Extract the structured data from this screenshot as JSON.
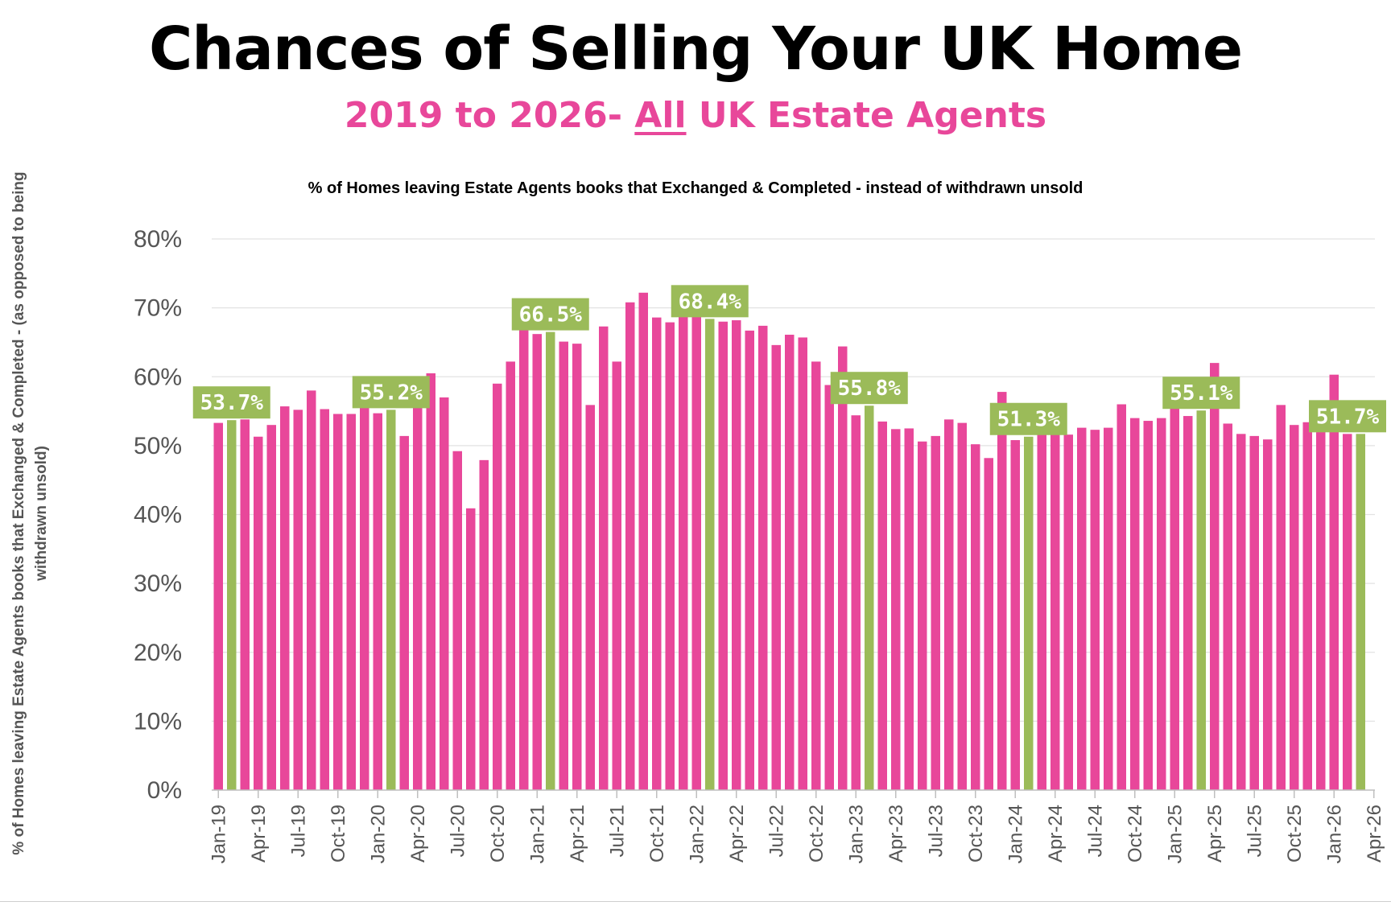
{
  "title": "Chances of Selling Your UK Home",
  "subtitle_pre": "2019 to 2026- ",
  "subtitle_ul": "All",
  "subtitle_post": " UK Estate Agents",
  "colors": {
    "pink": "#e8479a",
    "green": "#9bbb59",
    "grid": "#e2e2e2",
    "label_bg": "#9bbb59"
  },
  "chart_data": {
    "type": "bar",
    "title": "% of Homes leaving Estate Agents books that Exchanged & Completed - instead of withdrawn unsold",
    "ylabel": "% of Homes leaving Estate Agents books that Exchanged & Completed - (as opposed to being withdrawn unsold)",
    "ylim": [
      0,
      80
    ],
    "yticks": [
      "0%",
      "10%",
      "20%",
      "30%",
      "40%",
      "50%",
      "60%",
      "70%",
      "80%"
    ],
    "xticks": [
      "Jan-19",
      "Apr-19",
      "Jul-19",
      "Oct-19",
      "Jan-20",
      "Apr-20",
      "Jul-20",
      "Oct-20",
      "Jan-21",
      "Apr-21",
      "Jul-21",
      "Oct-21",
      "Jan-22",
      "Apr-22",
      "Jul-22",
      "Oct-22",
      "Jan-23",
      "Apr-23",
      "Jul-23",
      "Oct-23",
      "Jan-24",
      "Apr-24",
      "Jul-24",
      "Oct-24",
      "Jan-25",
      "Apr-25",
      "Jul-25",
      "Oct-25",
      "Jan-26",
      "Apr-26"
    ],
    "grid": true,
    "series": [
      {
        "values": [
          53.3,
          53.7,
          53.8,
          51.3,
          53.0,
          55.7,
          55.2,
          58.0,
          55.3,
          54.6,
          54.6,
          56.0,
          54.7,
          55.2,
          51.4,
          58.0,
          60.5,
          57.0,
          49.2,
          40.9,
          47.9,
          59.0,
          62.2,
          67.5,
          66.2,
          66.5,
          65.1,
          64.8,
          55.9,
          67.3,
          62.2,
          70.8,
          72.2,
          68.6,
          67.9,
          69.5,
          68.7,
          68.4,
          68.0,
          68.2,
          66.7,
          67.4,
          64.6,
          66.1,
          65.7,
          62.2,
          58.8,
          64.4,
          54.4,
          55.8,
          53.5,
          52.4,
          52.5,
          50.6,
          51.4,
          53.8,
          53.3,
          50.2,
          48.2,
          57.8,
          50.8,
          51.3,
          52.5,
          53.2,
          51.6,
          52.6,
          52.3,
          52.6,
          56.0,
          54.0,
          53.6,
          54.0,
          56.0,
          54.3,
          55.1,
          62.0,
          53.2,
          51.7,
          51.4,
          50.9,
          55.9,
          53.0,
          53.4,
          55.1,
          60.3,
          51.7,
          51.7
        ],
        "highlight": [
          false,
          true,
          false,
          false,
          false,
          false,
          false,
          false,
          false,
          false,
          false,
          false,
          false,
          true,
          false,
          false,
          false,
          false,
          false,
          false,
          false,
          false,
          false,
          false,
          false,
          true,
          false,
          false,
          false,
          false,
          false,
          false,
          false,
          false,
          false,
          false,
          false,
          true,
          false,
          false,
          false,
          false,
          false,
          false,
          false,
          false,
          false,
          false,
          false,
          true,
          false,
          false,
          false,
          false,
          false,
          false,
          false,
          false,
          false,
          false,
          false,
          true,
          false,
          false,
          false,
          false,
          false,
          false,
          false,
          false,
          false,
          false,
          false,
          false,
          true,
          false,
          false,
          false,
          false,
          false,
          false,
          false,
          false,
          false,
          false,
          false,
          true
        ]
      }
    ],
    "annotations": [
      "53.7%",
      "55.2%",
      "66.5%",
      "68.4%",
      "55.8%",
      "51.3%",
      "55.1%",
      "51.7%"
    ]
  }
}
